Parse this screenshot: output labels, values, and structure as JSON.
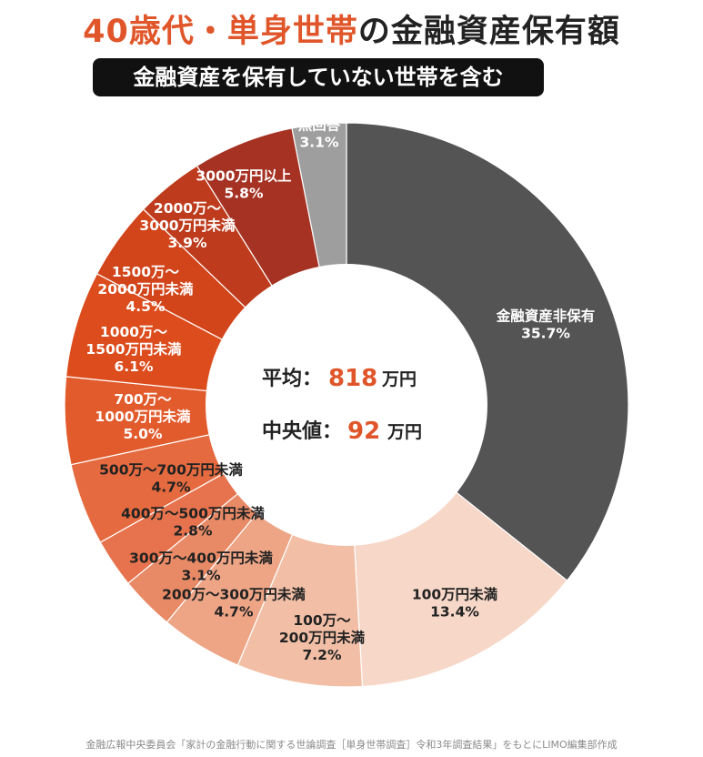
{
  "header": {
    "title_part1": "40歳代・単身世帯",
    "title_part2": "の金融資産保有額",
    "subtitle": "金融資産を保有していない世帯を含む"
  },
  "center": {
    "avg_label": "平均：",
    "avg_value": "818",
    "avg_unit": "万円",
    "median_label": "中央値：",
    "median_value": "92",
    "median_unit": "万円"
  },
  "footer": "金融広報中央委員会「家計の金融行動に関する世論調査［単身世帯調査］令和3年調査結果」をもとにLIMO編集部作成",
  "chart_data": {
    "type": "pie",
    "style": "donut",
    "start": "top",
    "direction": "clockwise",
    "slices": [
      {
        "label": "金融資産非保有",
        "value": 35.7,
        "display": "35.7%",
        "color": "#545454",
        "text_color": "#ffffff"
      },
      {
        "label": "100万円未満",
        "value": 13.4,
        "display": "13.4%",
        "color": "#f6d7c8",
        "text_color": "#222222"
      },
      {
        "label": "100万〜200万円未満",
        "value": 7.2,
        "display": "7.2%",
        "color": "#f2bfa6",
        "text_color": "#222222"
      },
      {
        "label": "200万〜300万円未満",
        "value": 4.7,
        "display": "4.7%",
        "color": "#eda586",
        "text_color": "#222222"
      },
      {
        "label": "300万〜400万円未満",
        "value": 3.1,
        "display": "3.1%",
        "color": "#e88a66",
        "text_color": "#222222"
      },
      {
        "label": "400万〜500万円未満",
        "value": 2.8,
        "display": "2.8%",
        "color": "#e6734d",
        "text_color": "#222222"
      },
      {
        "label": "500万〜700万円未満",
        "value": 4.7,
        "display": "4.7%",
        "color": "#e56a3f",
        "text_color": "#222222"
      },
      {
        "label": "700万〜1000万円未満",
        "value": 5.0,
        "display": "5.0%",
        "color": "#e25b2d",
        "text_color": "#ffffff"
      },
      {
        "label": "1000万〜1500万円未満",
        "value": 6.1,
        "display": "6.1%",
        "color": "#dc4c1c",
        "text_color": "#ffffff"
      },
      {
        "label": "1500万〜2000万円未満",
        "value": 4.5,
        "display": "4.5%",
        "color": "#d2441a",
        "text_color": "#ffffff"
      },
      {
        "label": "2000万〜3000万円未満",
        "value": 3.9,
        "display": "3.9%",
        "color": "#be3c1d",
        "text_color": "#ffffff"
      },
      {
        "label": "3000万円以上",
        "value": 5.8,
        "display": "5.8%",
        "color": "#a53222",
        "text_color": "#ffffff"
      },
      {
        "label": "無回答",
        "value": 3.1,
        "display": "3.1%",
        "color": "#9e9e9e",
        "text_color": "#ffffff"
      }
    ]
  }
}
